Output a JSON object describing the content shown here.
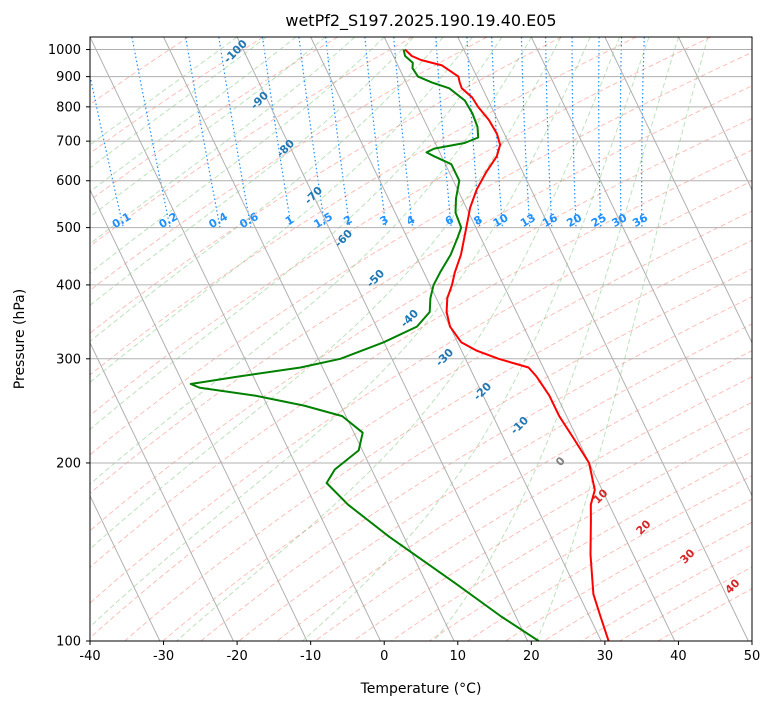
{
  "chart_data": {
    "type": "skew-t",
    "title": "wetPf2_S197.2025.190.19.40.E05",
    "xlabel": "Temperature (°C)",
    "ylabel": "Pressure (hPa)",
    "xlim": [
      -40,
      50
    ],
    "ylim": [
      1050,
      100
    ],
    "y_scale": "log",
    "grid": true,
    "x_ticks": [
      "-40",
      "-30",
      "-20",
      "-10",
      "0",
      "10",
      "20",
      "30",
      "40",
      "50"
    ],
    "y_ticks": [
      "100",
      "200",
      "300",
      "400",
      "500",
      "600",
      "700",
      "800",
      "900",
      "1000"
    ],
    "y_tick_values": [
      100,
      200,
      300,
      400,
      500,
      600,
      700,
      800,
      900,
      1000
    ],
    "temperature_color": "#ff0000",
    "dewpoint_color": "#008000",
    "series": [
      {
        "key": "temperature",
        "color": "#ff0000",
        "points": [
          [
            1000,
            2.0
          ],
          [
            975,
            2.5
          ],
          [
            960,
            3.5
          ],
          [
            940,
            6.0
          ],
          [
            900,
            7.5
          ],
          [
            880,
            7.3
          ],
          [
            860,
            7.2
          ],
          [
            830,
            8.0
          ],
          [
            800,
            8.2
          ],
          [
            760,
            8.8
          ],
          [
            720,
            9.0
          ],
          [
            690,
            8.7
          ],
          [
            660,
            7.5
          ],
          [
            620,
            5.0
          ],
          [
            580,
            2.6
          ],
          [
            540,
            0.5
          ],
          [
            500,
            -1.3
          ],
          [
            450,
            -3.8
          ],
          [
            420,
            -5.8
          ],
          [
            400,
            -7.0
          ],
          [
            380,
            -8.5
          ],
          [
            360,
            -9.5
          ],
          [
            340,
            -10.0
          ],
          [
            320,
            -9.5
          ],
          [
            310,
            -8.0
          ],
          [
            300,
            -5.5
          ],
          [
            290,
            -2.0
          ],
          [
            280,
            -1.5
          ],
          [
            260,
            -1.0
          ],
          [
            240,
            -1.0
          ],
          [
            220,
            -0.5
          ],
          [
            200,
            0.0
          ],
          [
            180,
            -1.0
          ],
          [
            170,
            -2.5
          ],
          [
            160,
            -3.5
          ],
          [
            140,
            -5.8
          ],
          [
            120,
            -8.0
          ],
          [
            110,
            -8.5
          ],
          [
            100,
            -9.0
          ]
        ]
      },
      {
        "key": "dewpoint",
        "color": "#008000",
        "points": [
          [
            1000,
            1.8
          ],
          [
            975,
            1.6
          ],
          [
            950,
            2.2
          ],
          [
            930,
            1.8
          ],
          [
            900,
            2.0
          ],
          [
            880,
            3.5
          ],
          [
            860,
            5.5
          ],
          [
            820,
            6.8
          ],
          [
            780,
            7.0
          ],
          [
            740,
            6.8
          ],
          [
            710,
            6.2
          ],
          [
            695,
            4.0
          ],
          [
            680,
            -0.5
          ],
          [
            670,
            -1.8
          ],
          [
            660,
            -1.0
          ],
          [
            640,
            0.8
          ],
          [
            600,
            0.8
          ],
          [
            560,
            -0.8
          ],
          [
            530,
            -1.8
          ],
          [
            500,
            -2.0
          ],
          [
            480,
            -3.2
          ],
          [
            450,
            -5.2
          ],
          [
            420,
            -7.8
          ],
          [
            400,
            -9.5
          ],
          [
            380,
            -10.8
          ],
          [
            360,
            -11.8
          ],
          [
            340,
            -14.5
          ],
          [
            320,
            -20.0
          ],
          [
            300,
            -27.0
          ],
          [
            290,
            -33.0
          ],
          [
            280,
            -42.0
          ],
          [
            272,
            -49.0
          ],
          [
            268,
            -48.0
          ],
          [
            260,
            -41.0
          ],
          [
            250,
            -35.0
          ],
          [
            240,
            -30.5
          ],
          [
            225,
            -28.8
          ],
          [
            210,
            -30.5
          ],
          [
            195,
            -35.0
          ],
          [
            185,
            -37.0
          ],
          [
            170,
            -35.5
          ],
          [
            150,
            -32.0
          ],
          [
            125,
            -26.0
          ],
          [
            110,
            -22.0
          ],
          [
            100,
            -18.5
          ]
        ]
      }
    ],
    "mixing_ratio_labels": [
      "0.1",
      "0.2",
      "0.4",
      "0.6",
      "1",
      "1.5",
      "2",
      "3",
      "4",
      "6",
      "8",
      "10",
      "13",
      "16",
      "20",
      "25",
      "30",
      "36"
    ],
    "mixing_ratio_values": [
      0.1,
      0.2,
      0.4,
      0.6,
      1,
      1.5,
      2,
      3,
      4,
      6,
      8,
      10,
      13,
      16,
      20,
      25,
      30,
      36
    ],
    "mixing_ratio_color": "#1e90ff",
    "dry_adiabat_labels": [
      "-100",
      "-90",
      "-80",
      "-70",
      "-60",
      "-50",
      "-40",
      "-30",
      "-20",
      "-10"
    ],
    "dry_adiabat_color": "#1f77b4",
    "moist_adiabat_labels": [
      "0",
      "10",
      "20",
      "30",
      "40"
    ],
    "moist_adiabat_color": "#d62728",
    "zero_label_color": "#808080"
  }
}
